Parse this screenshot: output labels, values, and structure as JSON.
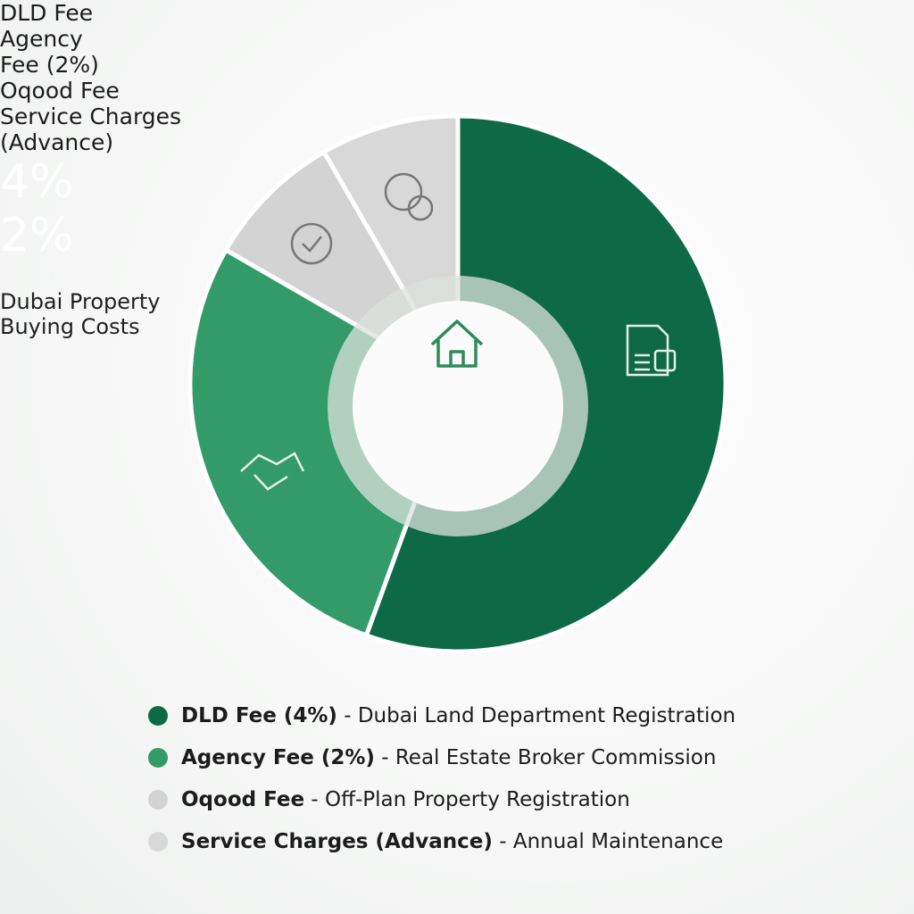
{
  "chart_data": {
    "type": "donut",
    "title": "Dubai Property Buying Costs",
    "categories": [
      "DLD Fee",
      "Agency Fee (2%)",
      "Oqood Fee",
      "Service Charges (Advance)"
    ],
    "values": [
      4,
      2,
      0.6,
      0.6
    ],
    "value_labels": [
      "4%",
      "2%",
      null,
      null
    ],
    "sub_labels": [
      "(4%)",
      null,
      null,
      null
    ],
    "colors": [
      "#0e6a46",
      "#339a69",
      "#d3d3d3",
      "#d8d8d8"
    ],
    "legend": [
      {
        "label": "DLD Fee (4%)",
        "description": "- Dubai Land Department Registration"
      },
      {
        "label": "Agency Fee (2%)",
        "description": "- Real Estate Broker Commission"
      },
      {
        "label": "Oqood Fee",
        "description": "- Off-Plan Property Registration"
      },
      {
        "label": "Service Charges (Advance)",
        "description": "- Annual Maintenance"
      }
    ]
  }
}
